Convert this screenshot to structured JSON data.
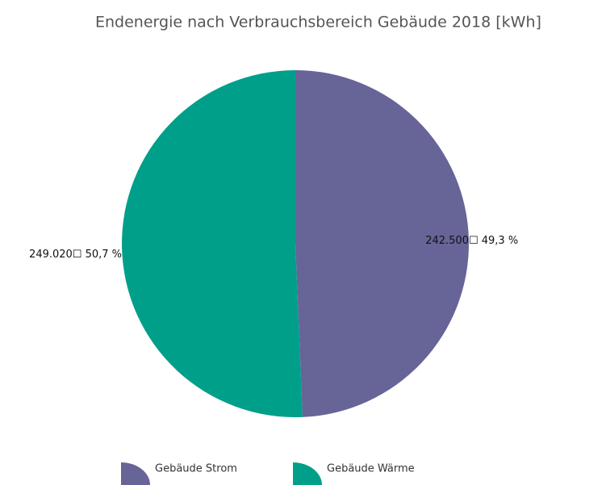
{
  "chart_data": {
    "type": "pie",
    "title": "Endenergie nach Verbrauchsbereich Gebäude 2018 [kWh]",
    "categories": [
      "Gebäude Strom",
      "Gebäude Wärme"
    ],
    "values": [
      242500,
      249020
    ],
    "value_labels": [
      "242.500☐ 49,3 %",
      "249.020☐ 50,7 %"
    ],
    "colors": [
      "#676498",
      "#009f8a"
    ],
    "legend": "bottom"
  }
}
